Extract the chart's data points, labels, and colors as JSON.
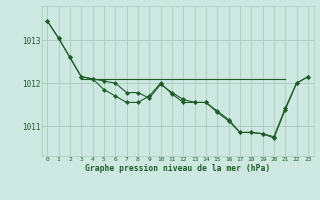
{
  "background_color": "#cce8e0",
  "grid_color": "#aaccbb",
  "line_color": "#1e5c2a",
  "marker_color": "#1e5c2a",
  "title": "Graphe pression niveau de la mer (hPa)",
  "xlabel_hours": [
    0,
    1,
    2,
    3,
    4,
    5,
    6,
    7,
    8,
    9,
    10,
    11,
    12,
    13,
    14,
    15,
    16,
    17,
    18,
    19,
    20,
    21,
    22,
    23
  ],
  "yticks": [
    1011,
    1012,
    1013
  ],
  "ylim": [
    1010.3,
    1013.8
  ],
  "xlim": [
    -0.5,
    23.5
  ],
  "series1": [
    1013.45,
    1013.05,
    1012.6,
    1012.15,
    1012.1,
    1011.85,
    1011.7,
    1011.55,
    1011.55,
    1011.7,
    1012.0,
    1011.75,
    1011.55,
    1011.55,
    1011.55,
    1011.35,
    1011.15,
    1010.85,
    1010.85,
    1010.82,
    1010.72,
    1011.38,
    1012.0,
    1012.15
  ],
  "series2": [
    1013.45,
    1013.05,
    1012.6,
    1012.15,
    1012.1,
    1012.05,
    1012.0,
    1011.78,
    1011.78,
    1011.65,
    1011.97,
    1011.78,
    1011.62,
    1011.55,
    1011.55,
    1011.32,
    1011.12,
    1010.85,
    1010.85,
    1010.82,
    1010.75,
    1011.42,
    1012.0,
    1012.15
  ],
  "flat_start": 3,
  "flat_end": 21,
  "flat_value": 1012.1
}
